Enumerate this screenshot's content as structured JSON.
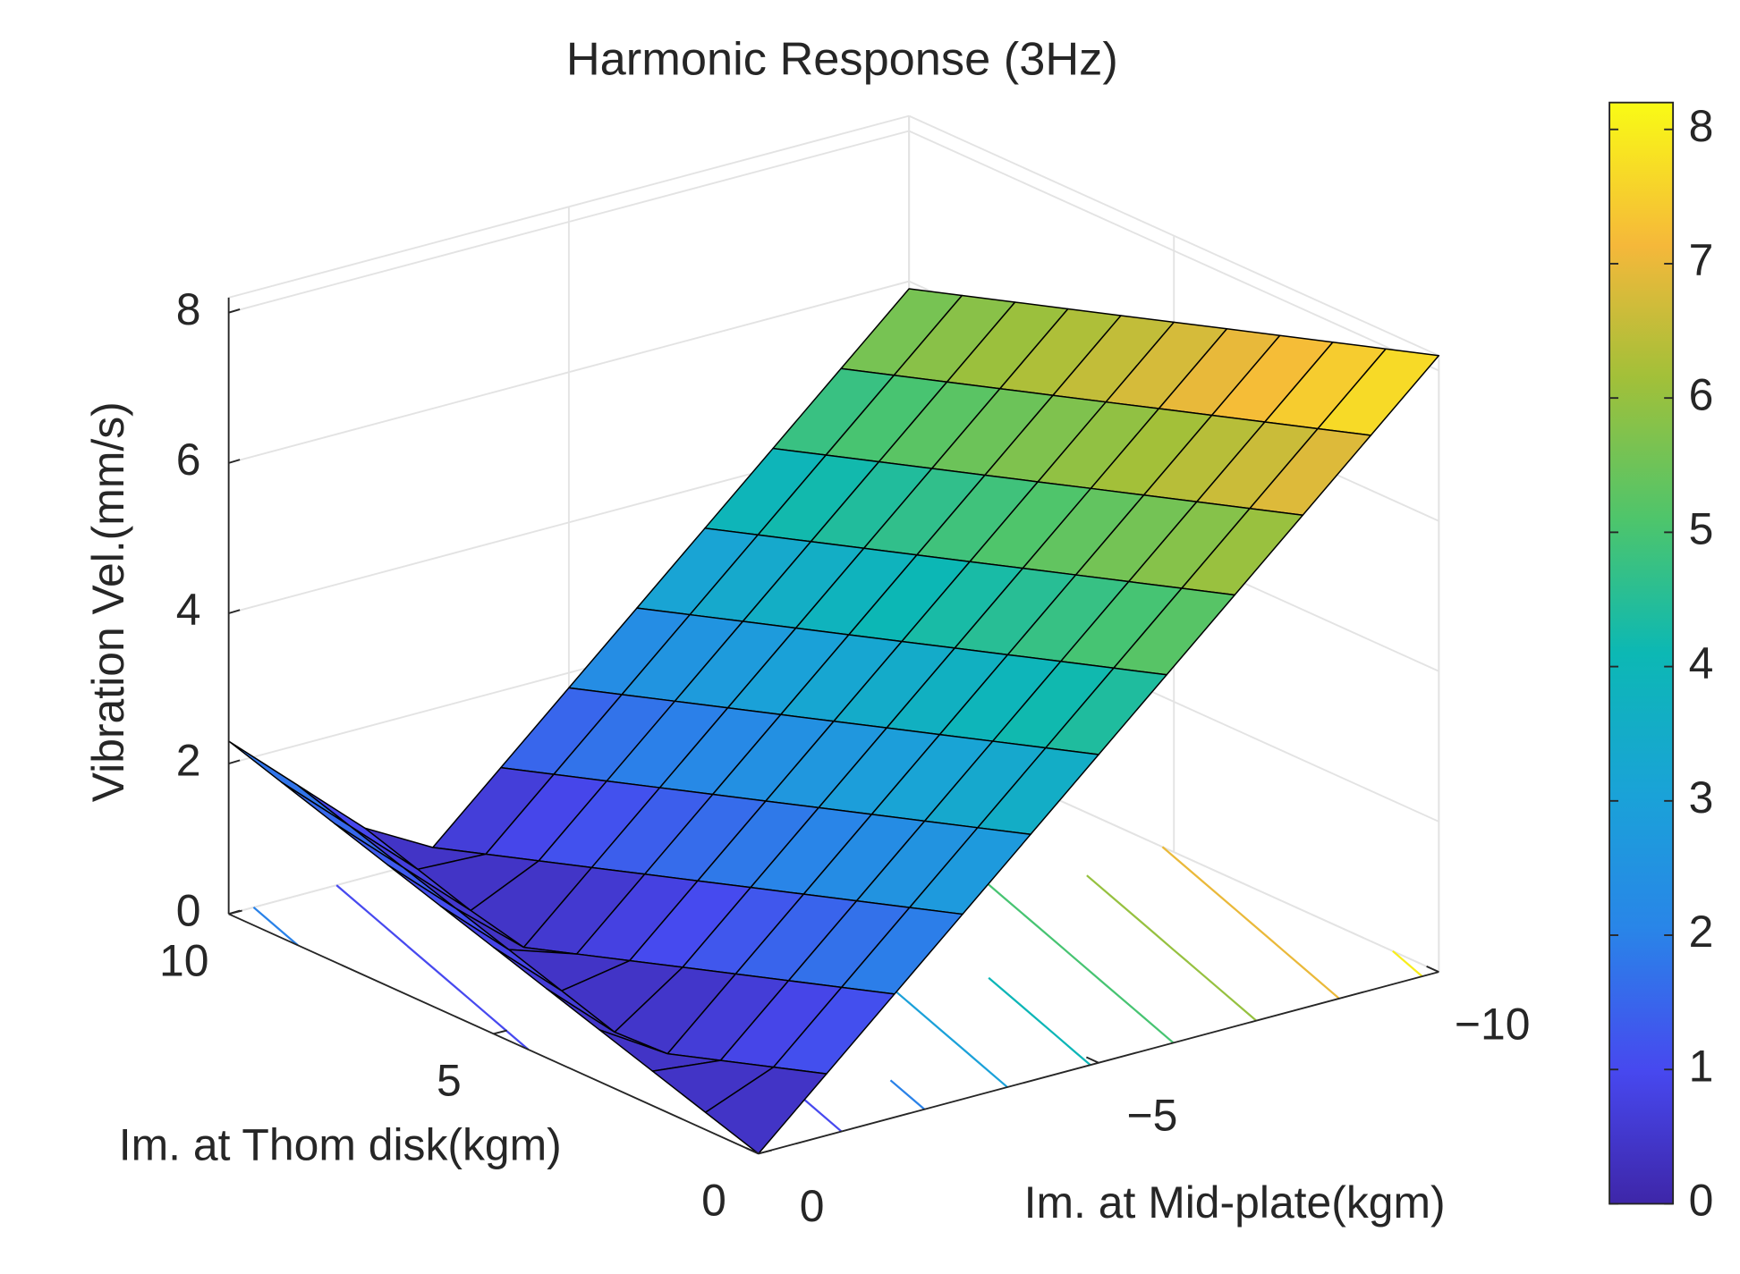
{
  "chart_data": {
    "type": "surface",
    "title": "Harmonic Response (3Hz)",
    "xlabel": "Im. at Mid-plate(kgm)",
    "ylabel": "Im. at Thom disk(kgm)",
    "zlabel": "Vibration Vel.(mm/s)",
    "x": [
      0,
      -1,
      -2,
      -3,
      -4,
      -5,
      -6,
      -7,
      -8,
      -9,
      -10
    ],
    "y": [
      0,
      1,
      2,
      3,
      4,
      5,
      6,
      7,
      8,
      9,
      10
    ],
    "z": [
      [
        0,
        0.82,
        1.64,
        2.46,
        3.28,
        4.1,
        4.92,
        5.74,
        6.56,
        7.38,
        8.2
      ],
      [
        0.23,
        0.59,
        1.41,
        2.23,
        3.05,
        3.87,
        4.69,
        5.51,
        6.33,
        7.15,
        7.97
      ],
      [
        0.46,
        0.36,
        1.18,
        2,
        2.82,
        3.64,
        4.46,
        5.28,
        6.1,
        6.92,
        7.74
      ],
      [
        0.69,
        0.13,
        0.95,
        1.77,
        2.59,
        3.41,
        4.23,
        5.05,
        5.87,
        6.69,
        7.51
      ],
      [
        0.92,
        0.1,
        0.72,
        1.54,
        2.36,
        3.18,
        4,
        4.82,
        5.64,
        6.46,
        7.28
      ],
      [
        1.15,
        0.33,
        0.49,
        1.31,
        2.13,
        2.95,
        3.77,
        4.59,
        5.41,
        6.23,
        7.05
      ],
      [
        1.38,
        0.56,
        0.26,
        1.08,
        1.9,
        2.72,
        3.54,
        4.36,
        5.18,
        6,
        6.82
      ],
      [
        1.61,
        0.79,
        0.03,
        0.85,
        1.67,
        2.49,
        3.31,
        4.13,
        4.95,
        5.77,
        6.59
      ],
      [
        1.84,
        1.02,
        0.2,
        0.62,
        1.44,
        2.26,
        3.08,
        3.9,
        4.72,
        5.54,
        6.36
      ],
      [
        2.07,
        1.25,
        0.43,
        0.39,
        1.21,
        2.03,
        2.85,
        3.67,
        4.49,
        5.31,
        6.13
      ],
      [
        2.3,
        1.48,
        0.66,
        0.16,
        0.98,
        1.8,
        2.62,
        3.44,
        4.26,
        5.08,
        5.9
      ]
    ],
    "contour_levels": [
      1,
      2,
      3,
      4,
      5,
      6,
      7,
      8
    ],
    "xlim": [
      -10,
      0
    ],
    "ylim": [
      0,
      10
    ],
    "zlim": [
      0,
      8.2
    ],
    "xticks": [
      {
        "value": -10,
        "label": "−10"
      },
      {
        "value": -5,
        "label": "−5"
      },
      0
    ],
    "yticks": [
      0,
      5,
      10
    ],
    "zticks": [
      0,
      2,
      4,
      6,
      8
    ],
    "colorbar": {
      "lim": [
        0,
        8.2
      ],
      "ticks": [
        0,
        1,
        2,
        3,
        4,
        5,
        6,
        7,
        8
      ]
    },
    "colormap": "parula",
    "grid": true
  }
}
